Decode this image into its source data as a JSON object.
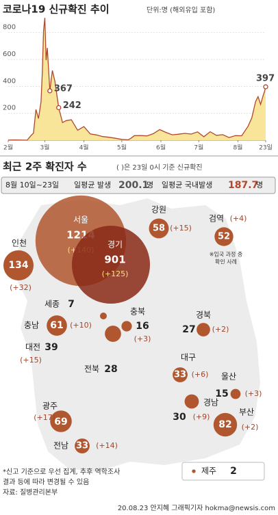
{
  "chart_data": {
    "type": "area",
    "title": "코로나19 신규확진 추이",
    "subtitle": "단위:명 (해외유입 포함)",
    "x": [
      0,
      5,
      10,
      15,
      18,
      20,
      22,
      24,
      26,
      27,
      28,
      29,
      30,
      31,
      33,
      35,
      37,
      40,
      43,
      46,
      50,
      55,
      60,
      65,
      70,
      75,
      80,
      85,
      90,
      95,
      97,
      100,
      105,
      110,
      115,
      120,
      125,
      130,
      135,
      140,
      145,
      150,
      155,
      160,
      165,
      170,
      175,
      180,
      185,
      190,
      193,
      196,
      198,
      200,
      202,
      203,
      204
    ],
    "series": [
      {
        "color": "#b0472a",
        "values": [
          1,
          2,
          1,
          0,
          34,
          53,
          229,
          161,
          284,
          505,
          813,
          909,
          595,
          686,
          367,
          518,
          438,
          242,
          131,
          146,
          152,
          74,
          101,
          47,
          39,
          27,
          22,
          14,
          6,
          3,
          13,
          34,
          35,
          32,
          49,
          79,
          58,
          40,
          45,
          51,
          46,
          62,
          26,
          63,
          36,
          41,
          20,
          34,
          33,
          103,
          166,
          288,
          324,
          266,
          332,
          360,
          397
        ]
      }
    ],
    "fill": "#f8e59a",
    "annotations": [
      {
        "x": 33,
        "value": 367
      },
      {
        "x": 40,
        "value": 242
      },
      {
        "x": 204,
        "value": 397
      }
    ],
    "xlim": [
      0,
      204
    ],
    "ylim": [
      0,
      900
    ],
    "xticks": [
      {
        "value": 0,
        "label": "2월"
      },
      {
        "value": 29,
        "label": "3월"
      },
      {
        "value": 60,
        "label": "4월"
      },
      {
        "value": 90,
        "label": "5월"
      },
      {
        "value": 121,
        "label": "6월"
      },
      {
        "value": 151,
        "label": "7월"
      },
      {
        "value": 182,
        "label": "8월"
      },
      {
        "value": 204,
        "label": "23일"
      }
    ],
    "yticks": [
      200,
      400,
      600,
      800
    ],
    "grid": true
  },
  "summary": {
    "title": "최근 2주 확진자 수",
    "note": "( )은 23일 0시 기준 신규확진",
    "period": "8월 10일~23일",
    "avg_label": "일평균 발생",
    "avg": 200.1,
    "avg_unit": "명",
    "domestic_label": "일평균 국내발생",
    "domestic": 187.7,
    "domestic_unit": "명"
  },
  "regions": [
    {
      "name": "서울",
      "total": 1214,
      "new": "(+140)"
    },
    {
      "name": "경기",
      "total": 901,
      "new": "(+125)"
    },
    {
      "name": "인천",
      "total": 134,
      "new": "(+32)"
    },
    {
      "name": "강원",
      "total": 58,
      "new": "(+15)"
    },
    {
      "name": "검역",
      "total": 52,
      "new": "(+4)"
    },
    {
      "name": "세종",
      "total": 7
    },
    {
      "name": "충북",
      "total": 16,
      "new": "(+3)"
    },
    {
      "name": "충남",
      "total": 61,
      "new": "(+10)"
    },
    {
      "name": "대전",
      "total": 39,
      "new": "(+15)"
    },
    {
      "name": "경북",
      "total": 27,
      "new": "(+2)"
    },
    {
      "name": "전북",
      "total": 28
    },
    {
      "name": "대구",
      "total": 33,
      "new": "(+6)"
    },
    {
      "name": "울산",
      "total": 15,
      "new": "(+3)"
    },
    {
      "name": "경남",
      "total": 30,
      "new": "(+9)"
    },
    {
      "name": "부산",
      "total": 82,
      "new": "(+2)"
    },
    {
      "name": "광주",
      "total": 69,
      "new": "(+17)"
    },
    {
      "name": "전남",
      "total": 33,
      "new": "(+14)"
    },
    {
      "name": "제주",
      "total": 2
    }
  ],
  "quarantine_note": [
    "※입국 과정 중",
    "확인 사례"
  ],
  "footnotes": [
    "*신고 기준으로 우선 집계, 추후 역학조사",
    "결과 등에 따라 변경될 수 있음",
    "자료: 질병관리본부"
  ],
  "credit": "20.08.23 안지혜 그래픽기자 hokma@newsis.com"
}
